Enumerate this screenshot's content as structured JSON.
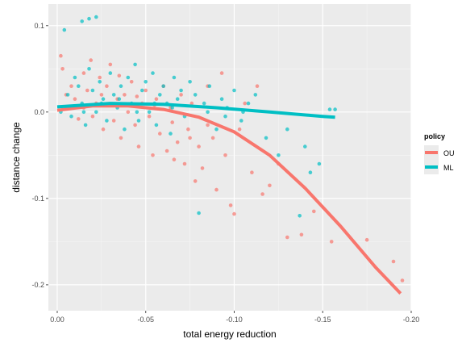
{
  "chart_data": {
    "type": "scatter",
    "xlabel": "total energy reduction",
    "ylabel": "distance change",
    "xlim": [
      0.005,
      -0.2
    ],
    "ylim": [
      -0.23,
      0.125
    ],
    "x_ticks": [
      {
        "value": 0.0,
        "label": "0.00"
      },
      {
        "value": -0.05,
        "label": "-0.05"
      },
      {
        "value": -0.1,
        "label": "-0.10"
      },
      {
        "value": -0.15,
        "label": "-0.15"
      },
      {
        "value": -0.2,
        "label": "-0.20"
      }
    ],
    "y_ticks": [
      {
        "value": 0.1,
        "label": "0.1"
      },
      {
        "value": 0.0,
        "label": "0.0"
      },
      {
        "value": -0.1,
        "label": "-0.1"
      },
      {
        "value": -0.2,
        "label": "-0.2"
      }
    ],
    "grid": true,
    "legend": {
      "title": "policy",
      "position": "right"
    },
    "series": [
      {
        "name": "OU",
        "color": "#f8766d",
        "points": [
          [
            -0.003,
            0.05
          ],
          [
            -0.002,
            0.065
          ],
          [
            -0.005,
            0.02
          ],
          [
            -0.008,
            0.03
          ],
          [
            -0.01,
            0.015
          ],
          [
            -0.012,
            -0.008
          ],
          [
            -0.015,
            0.045
          ],
          [
            -0.017,
            0.025
          ],
          [
            -0.019,
            0.06
          ],
          [
            -0.02,
            -0.005
          ],
          [
            -0.022,
            0.01
          ],
          [
            -0.024,
            0.04
          ],
          [
            -0.026,
            -0.02
          ],
          [
            -0.028,
            0.03
          ],
          [
            -0.03,
            0.055
          ],
          [
            -0.032,
            -0.01
          ],
          [
            -0.034,
            0.015
          ],
          [
            -0.036,
            -0.03
          ],
          [
            -0.038,
            0.02
          ],
          [
            -0.04,
            0.0
          ],
          [
            -0.042,
            0.035
          ],
          [
            -0.044,
            -0.015
          ],
          [
            -0.046,
            -0.04
          ],
          [
            -0.048,
            0.01
          ],
          [
            -0.05,
            0.025
          ],
          [
            -0.052,
            -0.005
          ],
          [
            -0.054,
            -0.05
          ],
          [
            -0.056,
            0.015
          ],
          [
            -0.058,
            -0.025
          ],
          [
            -0.06,
            0.03
          ],
          [
            -0.062,
            -0.045
          ],
          [
            -0.064,
            0.005
          ],
          [
            -0.066,
            -0.055
          ],
          [
            -0.068,
            -0.035
          ],
          [
            -0.07,
            0.02
          ],
          [
            -0.072,
            -0.06
          ],
          [
            -0.074,
            -0.02
          ],
          [
            -0.076,
            0.01
          ],
          [
            -0.078,
            -0.08
          ],
          [
            -0.08,
            -0.04
          ],
          [
            -0.082,
            -0.065
          ],
          [
            -0.085,
            0.03
          ],
          [
            -0.088,
            -0.03
          ],
          [
            -0.09,
            -0.09
          ],
          [
            -0.093,
            0.045
          ],
          [
            -0.095,
            -0.05
          ],
          [
            -0.098,
            -0.108
          ],
          [
            -0.1,
            -0.118
          ],
          [
            -0.103,
            -0.02
          ],
          [
            -0.106,
            0.01
          ],
          [
            -0.11,
            -0.07
          ],
          [
            -0.113,
            0.03
          ],
          [
            -0.116,
            -0.095
          ],
          [
            -0.12,
            -0.085
          ],
          [
            -0.125,
            -0.06
          ],
          [
            -0.13,
            -0.145
          ],
          [
            -0.138,
            -0.142
          ],
          [
            -0.145,
            -0.115
          ],
          [
            -0.155,
            -0.15
          ],
          [
            -0.175,
            -0.148
          ],
          [
            -0.19,
            -0.173
          ],
          [
            -0.195,
            -0.195
          ],
          [
            -0.015,
            0.005
          ],
          [
            -0.025,
            0.02
          ],
          [
            -0.035,
            0.042
          ],
          [
            -0.045,
            0.018
          ],
          [
            -0.055,
            0.008
          ],
          [
            -0.065,
            -0.012
          ],
          [
            -0.075,
            -0.03
          ],
          [
            -0.085,
            -0.015
          ]
        ],
        "fit": [
          [
            0.0,
            0.002
          ],
          [
            -0.02,
            0.007
          ],
          [
            -0.04,
            0.007
          ],
          [
            -0.06,
            0.003
          ],
          [
            -0.08,
            -0.006
          ],
          [
            -0.1,
            -0.023
          ],
          [
            -0.12,
            -0.05
          ],
          [
            -0.14,
            -0.088
          ],
          [
            -0.16,
            -0.132
          ],
          [
            -0.18,
            -0.18
          ],
          [
            -0.194,
            -0.21
          ]
        ]
      },
      {
        "name": "ML",
        "color": "#00bfc4",
        "points": [
          [
            -0.002,
            0.0
          ],
          [
            -0.004,
            0.095
          ],
          [
            -0.006,
            0.02
          ],
          [
            -0.008,
            -0.005
          ],
          [
            -0.01,
            0.04
          ],
          [
            -0.012,
            0.03
          ],
          [
            -0.014,
            0.01
          ],
          [
            -0.016,
            -0.015
          ],
          [
            -0.018,
            0.05
          ],
          [
            -0.02,
            0.025
          ],
          [
            -0.022,
            0.0
          ],
          [
            -0.024,
            0.035
          ],
          [
            -0.026,
            0.015
          ],
          [
            -0.028,
            -0.01
          ],
          [
            -0.03,
            0.045
          ],
          [
            -0.032,
            0.02
          ],
          [
            -0.034,
            0.005
          ],
          [
            -0.036,
            0.03
          ],
          [
            -0.038,
            -0.02
          ],
          [
            -0.04,
            0.04
          ],
          [
            -0.042,
            0.01
          ],
          [
            -0.044,
            0.055
          ],
          [
            -0.046,
            -0.01
          ],
          [
            -0.048,
            0.025
          ],
          [
            -0.05,
            0.035
          ],
          [
            -0.052,
            0.0
          ],
          [
            -0.054,
            0.045
          ],
          [
            -0.056,
            -0.015
          ],
          [
            -0.058,
            0.02
          ],
          [
            -0.06,
            0.03
          ],
          [
            -0.062,
            0.01
          ],
          [
            -0.064,
            -0.025
          ],
          [
            -0.066,
            0.04
          ],
          [
            -0.068,
            0.015
          ],
          [
            -0.07,
            0.025
          ],
          [
            -0.072,
            -0.005
          ],
          [
            -0.075,
            0.035
          ],
          [
            -0.078,
            0.02
          ],
          [
            -0.08,
            -0.117
          ],
          [
            -0.083,
            0.01
          ],
          [
            -0.086,
            0.03
          ],
          [
            -0.09,
            -0.02
          ],
          [
            -0.093,
            0.015
          ],
          [
            -0.096,
            0.005
          ],
          [
            -0.1,
            0.025
          ],
          [
            -0.104,
            -0.01
          ],
          [
            -0.108,
            0.01
          ],
          [
            -0.112,
            0.02
          ],
          [
            -0.118,
            -0.03
          ],
          [
            -0.125,
            -0.05
          ],
          [
            -0.13,
            -0.02
          ],
          [
            -0.137,
            -0.12
          ],
          [
            -0.14,
            -0.04
          ],
          [
            -0.143,
            -0.07
          ],
          [
            -0.148,
            -0.06
          ],
          [
            -0.154,
            0.003
          ],
          [
            -0.157,
            0.003
          ],
          [
            -0.014,
            0.105
          ],
          [
            -0.018,
            0.108
          ],
          [
            -0.022,
            0.11
          ],
          [
            -0.005,
            0.005
          ],
          [
            -0.015,
            0.0
          ],
          [
            -0.025,
            0.01
          ],
          [
            -0.035,
            0.015
          ],
          [
            -0.045,
            0.0
          ],
          [
            -0.055,
            0.01
          ],
          [
            -0.065,
            0.005
          ],
          [
            -0.085,
            0.0
          ],
          [
            -0.095,
            -0.005
          ],
          [
            -0.105,
            0.0
          ]
        ],
        "fit": [
          [
            0.0,
            0.006
          ],
          [
            -0.03,
            0.01
          ],
          [
            -0.06,
            0.009
          ],
          [
            -0.09,
            0.005
          ],
          [
            -0.12,
            0.0
          ],
          [
            -0.15,
            -0.005
          ],
          [
            -0.157,
            -0.006
          ]
        ]
      }
    ]
  }
}
